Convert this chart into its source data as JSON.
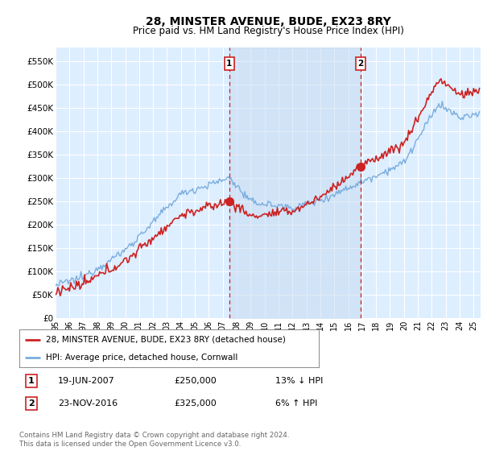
{
  "title": "28, MINSTER AVENUE, BUDE, EX23 8RY",
  "subtitle": "Price paid vs. HM Land Registry's House Price Index (HPI)",
  "ylabel_ticks": [
    "£0",
    "£50K",
    "£100K",
    "£150K",
    "£200K",
    "£250K",
    "£300K",
    "£350K",
    "£400K",
    "£450K",
    "£500K",
    "£550K"
  ],
  "ytick_values": [
    0,
    50000,
    100000,
    150000,
    200000,
    250000,
    300000,
    350000,
    400000,
    450000,
    500000,
    550000
  ],
  "ylim": [
    0,
    580000
  ],
  "hpi_color": "#7aadde",
  "price_color": "#cc2222",
  "background_color": "#ffffff",
  "plot_bg_color": "#ddeeff",
  "shade_color": "#c5daf0",
  "grid_color": "#ffffff",
  "legend_label_price": "28, MINSTER AVENUE, BUDE, EX23 8RY (detached house)",
  "legend_label_hpi": "HPI: Average price, detached house, Cornwall",
  "marker1_date_num": 2007.47,
  "marker1_price": 250000,
  "marker1_label": "1",
  "marker2_date_num": 2016.9,
  "marker2_price": 325000,
  "marker2_label": "2",
  "footnote": "Contains HM Land Registry data © Crown copyright and database right 2024.\nThis data is licensed under the Open Government Licence v3.0.",
  "xmin": 1995,
  "xmax": 2025.5,
  "xtick_start": 1995,
  "xtick_end": 2025
}
